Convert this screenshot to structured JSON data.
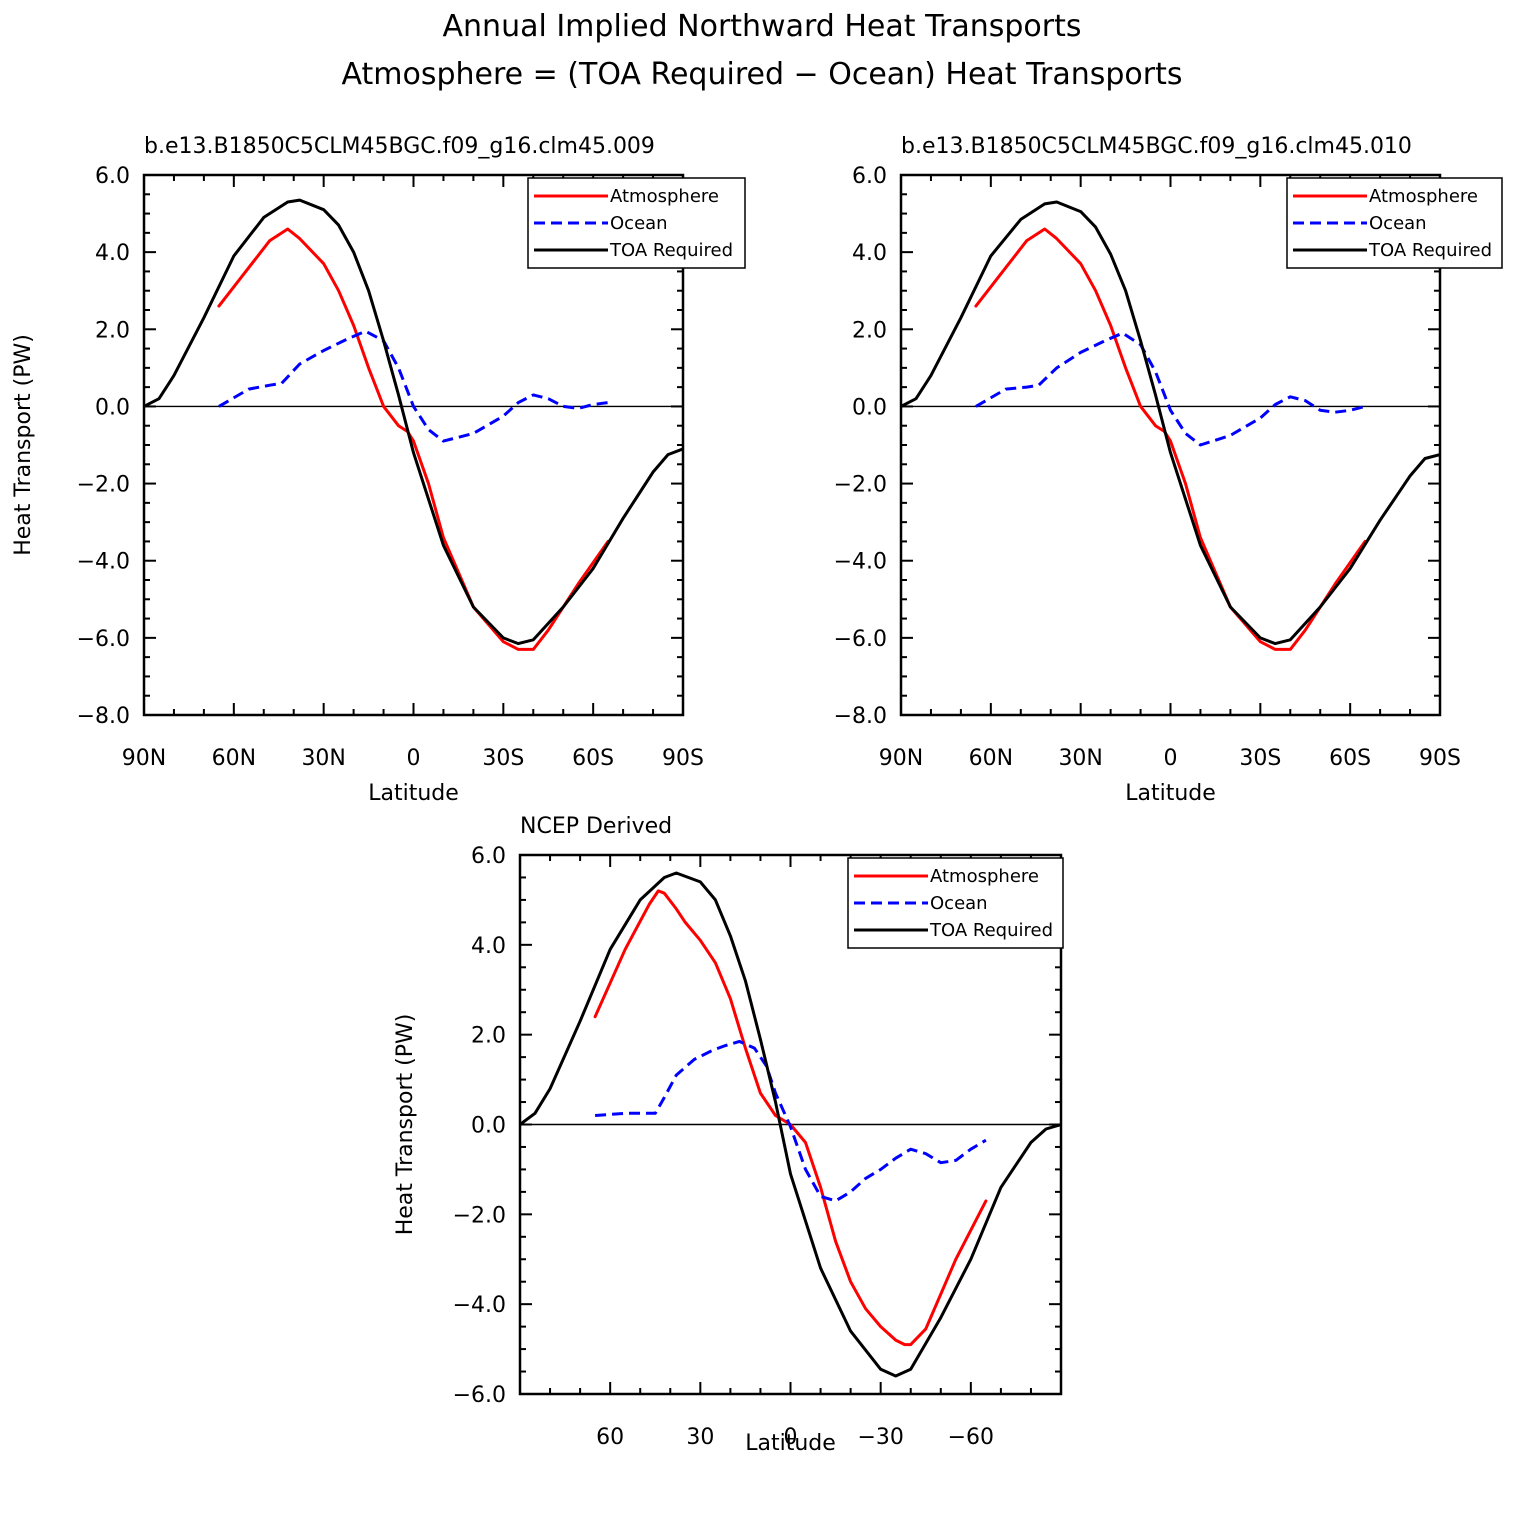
{
  "figure": {
    "title_line1": "Annual Implied Northward Heat Transports",
    "title_line2": "Atmosphere = (TOA Required − Ocean) Heat Transports"
  },
  "chart_data": [
    {
      "type": "line",
      "title": "b.e13.B1850C5CLM45BGC.f09_g16.clm45.009",
      "xlabel": "Latitude",
      "ylabel": "Heat Transport (PW)",
      "xlim": [
        90,
        -90
      ],
      "ylim": [
        -8,
        6
      ],
      "xticks": [
        90,
        60,
        30,
        0,
        -30,
        -60,
        -90
      ],
      "xtick_labels": [
        "90N",
        "60N",
        "30N",
        "0",
        "30S",
        "60S",
        "90S"
      ],
      "yticks": [
        -8,
        -6,
        -4,
        -2,
        0,
        2,
        4,
        6
      ],
      "ytick_labels": [
        "−8.0",
        "−6.0",
        "−4.0",
        "−2.0",
        "0.0",
        "2.0",
        "4.0",
        "6.0"
      ],
      "legend": [
        "Atmosphere",
        "Ocean",
        "TOA Required"
      ],
      "series": [
        {
          "name": "Atmosphere",
          "color": "#ff0000",
          "dash": "solid",
          "x": [
            65,
            55,
            48,
            42,
            38,
            30,
            25,
            20,
            15,
            10,
            5,
            2,
            0,
            -5,
            -10,
            -20,
            -30,
            -35,
            -40,
            -45,
            -55,
            -65
          ],
          "y": [
            2.6,
            3.6,
            4.3,
            4.6,
            4.35,
            3.7,
            3.0,
            2.1,
            1.0,
            0.0,
            -0.5,
            -0.65,
            -0.9,
            -2.0,
            -3.4,
            -5.2,
            -6.1,
            -6.3,
            -6.3,
            -5.8,
            -4.6,
            -3.5
          ]
        },
        {
          "name": "Ocean",
          "color": "#0000ff",
          "dash": "dashed",
          "x": [
            65,
            55,
            48,
            44,
            38,
            30,
            22,
            16,
            10,
            5,
            0,
            -5,
            -10,
            -20,
            -30,
            -35,
            -40,
            -45,
            -50,
            -55,
            -60,
            -65
          ],
          "y": [
            0.0,
            0.45,
            0.55,
            0.6,
            1.1,
            1.45,
            1.75,
            1.95,
            1.7,
            1.0,
            0.0,
            -0.6,
            -0.9,
            -0.7,
            -0.25,
            0.1,
            0.3,
            0.2,
            0.0,
            -0.05,
            0.05,
            0.1
          ]
        },
        {
          "name": "TOA Required",
          "color": "#000000",
          "dash": "solid",
          "x": [
            90,
            85,
            80,
            70,
            60,
            50,
            42,
            38,
            30,
            25,
            20,
            15,
            10,
            5,
            0,
            -10,
            -20,
            -30,
            -35,
            -40,
            -50,
            -60,
            -70,
            -80,
            -85,
            -90
          ],
          "y": [
            0.0,
            0.2,
            0.8,
            2.3,
            3.9,
            4.9,
            5.3,
            5.35,
            5.1,
            4.7,
            4.0,
            3.0,
            1.7,
            0.3,
            -1.2,
            -3.6,
            -5.2,
            -6.0,
            -6.15,
            -6.05,
            -5.2,
            -4.2,
            -2.9,
            -1.7,
            -1.25,
            -1.1
          ]
        }
      ]
    },
    {
      "type": "line",
      "title": "b.e13.B1850C5CLM45BGC.f09_g16.clm45.010",
      "xlabel": "Latitude",
      "ylabel": "",
      "xlim": [
        90,
        -90
      ],
      "ylim": [
        -8,
        6
      ],
      "xticks": [
        90,
        60,
        30,
        0,
        -30,
        -60,
        -90
      ],
      "xtick_labels": [
        "90N",
        "60N",
        "30N",
        "0",
        "30S",
        "60S",
        "90S"
      ],
      "yticks": [
        -8,
        -6,
        -4,
        -2,
        0,
        2,
        4,
        6
      ],
      "ytick_labels": [
        "−8.0",
        "−6.0",
        "−4.0",
        "−2.0",
        "0.0",
        "2.0",
        "4.0",
        "6.0"
      ],
      "legend": [
        "Atmosphere",
        "Ocean",
        "TOA Required"
      ],
      "series": [
        {
          "name": "Atmosphere",
          "color": "#ff0000",
          "dash": "solid",
          "x": [
            65,
            55,
            48,
            42,
            38,
            30,
            25,
            20,
            15,
            10,
            5,
            2,
            0,
            -5,
            -10,
            -20,
            -30,
            -35,
            -40,
            -45,
            -55,
            -65
          ],
          "y": [
            2.6,
            3.6,
            4.3,
            4.6,
            4.35,
            3.7,
            3.0,
            2.1,
            1.0,
            0.0,
            -0.5,
            -0.65,
            -0.9,
            -2.0,
            -3.4,
            -5.2,
            -6.1,
            -6.3,
            -6.3,
            -5.8,
            -4.6,
            -3.5
          ]
        },
        {
          "name": "Ocean",
          "color": "#0000ff",
          "dash": "dashed",
          "x": [
            65,
            55,
            48,
            44,
            38,
            30,
            22,
            16,
            10,
            5,
            0,
            -5,
            -10,
            -20,
            -30,
            -35,
            -40,
            -45,
            -50,
            -55,
            -60,
            -65
          ],
          "y": [
            0.0,
            0.45,
            0.5,
            0.55,
            1.0,
            1.4,
            1.7,
            1.9,
            1.6,
            0.9,
            -0.1,
            -0.7,
            -1.0,
            -0.75,
            -0.3,
            0.05,
            0.25,
            0.15,
            -0.1,
            -0.15,
            -0.1,
            0.0
          ]
        },
        {
          "name": "TOA Required",
          "color": "#000000",
          "dash": "solid",
          "x": [
            90,
            85,
            80,
            70,
            60,
            50,
            42,
            38,
            30,
            25,
            20,
            15,
            10,
            5,
            0,
            -10,
            -20,
            -30,
            -35,
            -40,
            -50,
            -60,
            -70,
            -80,
            -85,
            -90
          ],
          "y": [
            0.0,
            0.2,
            0.8,
            2.3,
            3.9,
            4.85,
            5.25,
            5.3,
            5.05,
            4.65,
            3.95,
            3.0,
            1.7,
            0.3,
            -1.2,
            -3.6,
            -5.2,
            -6.0,
            -6.15,
            -6.05,
            -5.2,
            -4.2,
            -2.95,
            -1.8,
            -1.35,
            -1.25
          ]
        }
      ]
    },
    {
      "type": "line",
      "title": "NCEP Derived",
      "xlabel": "Latitude",
      "ylabel": "Heat Transport (PW)",
      "xlim": [
        90,
        -90
      ],
      "ylim": [
        -6,
        6
      ],
      "xticks": [
        60,
        30,
        0,
        -30,
        -60
      ],
      "xtick_labels": [
        "60",
        "30",
        "0",
        "−30",
        "−60"
      ],
      "yticks": [
        -6,
        -4,
        -2,
        0,
        2,
        4,
        6
      ],
      "ytick_labels": [
        "−6.0",
        "−4.0",
        "−2.0",
        "0.0",
        "2.0",
        "4.0",
        "6.0"
      ],
      "legend": [
        "Atmosphere",
        "Ocean",
        "TOA Required"
      ],
      "series": [
        {
          "name": "Atmosphere",
          "color": "#ff0000",
          "dash": "solid",
          "x": [
            65,
            55,
            47,
            44,
            42,
            38,
            35,
            30,
            25,
            20,
            15,
            10,
            5,
            0,
            -5,
            -10,
            -15,
            -20,
            -25,
            -30,
            -35,
            -38,
            -40,
            -45,
            -55,
            -65
          ],
          "y": [
            2.4,
            3.9,
            4.9,
            5.2,
            5.15,
            4.8,
            4.5,
            4.1,
            3.6,
            2.8,
            1.7,
            0.7,
            0.2,
            0.0,
            -0.4,
            -1.4,
            -2.6,
            -3.5,
            -4.1,
            -4.5,
            -4.8,
            -4.9,
            -4.9,
            -4.55,
            -3.0,
            -1.7
          ]
        },
        {
          "name": "Ocean",
          "color": "#0000ff",
          "dash": "dashed",
          "x": [
            65,
            55,
            50,
            45,
            42,
            38,
            32,
            26,
            22,
            17,
            12,
            8,
            5,
            0,
            -5,
            -10,
            -15,
            -20,
            -25,
            -30,
            -35,
            -40,
            -45,
            -50,
            -55,
            -60,
            -65
          ],
          "y": [
            0.2,
            0.25,
            0.25,
            0.25,
            0.6,
            1.1,
            1.45,
            1.65,
            1.75,
            1.85,
            1.7,
            1.3,
            0.7,
            -0.05,
            -1.0,
            -1.6,
            -1.7,
            -1.5,
            -1.2,
            -1.0,
            -0.75,
            -0.55,
            -0.65,
            -0.85,
            -0.8,
            -0.55,
            -0.35
          ]
        },
        {
          "name": "TOA Required",
          "color": "#000000",
          "dash": "solid",
          "x": [
            90,
            85,
            80,
            70,
            60,
            50,
            42,
            38,
            30,
            25,
            20,
            15,
            10,
            5,
            0,
            -10,
            -20,
            -30,
            -35,
            -40,
            -50,
            -60,
            -70,
            -80,
            -85,
            -90
          ],
          "y": [
            0.0,
            0.25,
            0.8,
            2.3,
            3.9,
            5.0,
            5.5,
            5.6,
            5.4,
            5.0,
            4.2,
            3.2,
            1.9,
            0.5,
            -1.1,
            -3.2,
            -4.6,
            -5.45,
            -5.6,
            -5.45,
            -4.3,
            -3.0,
            -1.4,
            -0.4,
            -0.1,
            0.0
          ]
        }
      ]
    }
  ]
}
